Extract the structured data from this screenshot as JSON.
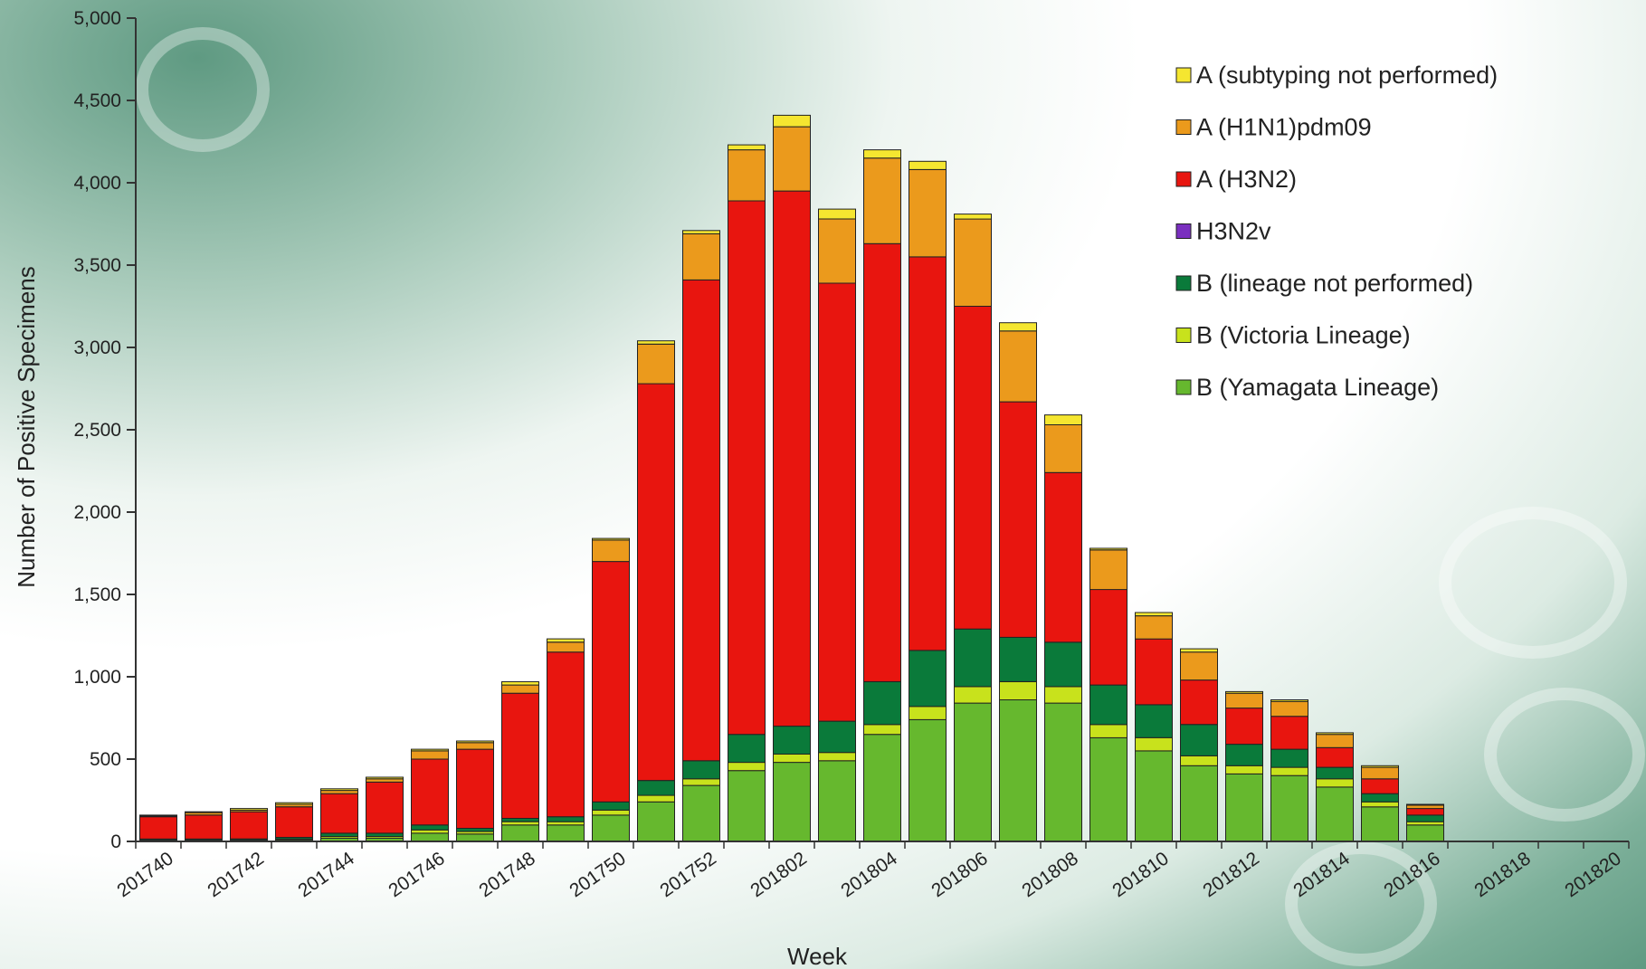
{
  "chart_data": {
    "type": "bar",
    "stacked": true,
    "xlabel": "Week",
    "ylabel": "Number of Positive Specimens",
    "ylim": [
      0,
      5000
    ],
    "yticks": [
      0,
      500,
      1000,
      1500,
      2000,
      2500,
      3000,
      3500,
      4000,
      4500,
      5000
    ],
    "ytick_labels": [
      "0",
      "500",
      "1,000",
      "1,500",
      "2,000",
      "2,500",
      "3,000",
      "3,500",
      "4,000",
      "4,500",
      "5,000"
    ],
    "xtick_labels": [
      "201740",
      "201742",
      "201744",
      "201746",
      "201748",
      "201750",
      "201752",
      "201802",
      "201804",
      "201806",
      "201808",
      "201810",
      "201812",
      "201814",
      "201816",
      "201818",
      "201820"
    ],
    "categories": [
      "201740",
      "201741",
      "201742",
      "201743",
      "201744",
      "201745",
      "201746",
      "201747",
      "201748",
      "201749",
      "201750",
      "201751",
      "201752",
      "201801",
      "201802",
      "201803",
      "201804",
      "201805",
      "201806",
      "201807",
      "201808",
      "201809",
      "201810",
      "201811",
      "201812",
      "201813",
      "201814",
      "201815",
      "201816",
      "201817",
      "201818",
      "201819",
      "201820"
    ],
    "legend_position": "top-right",
    "series": [
      {
        "name": "B (Yamagata Lineage)",
        "color": "#66b82e",
        "values": [
          5,
          5,
          5,
          10,
          20,
          20,
          50,
          45,
          100,
          100,
          160,
          240,
          340,
          430,
          480,
          490,
          650,
          740,
          840,
          860,
          840,
          630,
          550,
          460,
          410,
          400,
          330,
          210,
          100,
          0,
          0,
          0,
          0
        ]
      },
      {
        "name": "B (Victoria Lineage)",
        "color": "#c8e21c",
        "values": [
          3,
          3,
          3,
          5,
          10,
          10,
          20,
          15,
          20,
          20,
          30,
          40,
          40,
          50,
          50,
          50,
          60,
          80,
          100,
          110,
          100,
          80,
          80,
          60,
          50,
          50,
          50,
          30,
          20,
          0,
          0,
          0,
          0
        ]
      },
      {
        "name": "B (lineage not performed)",
        "color": "#0a7a3a",
        "values": [
          7,
          7,
          7,
          10,
          20,
          20,
          30,
          20,
          20,
          30,
          50,
          90,
          110,
          170,
          170,
          190,
          260,
          340,
          350,
          270,
          270,
          240,
          200,
          190,
          130,
          110,
          70,
          50,
          40,
          0,
          0,
          0,
          0
        ]
      },
      {
        "name": "H3N2v",
        "color": "#7a2fbf",
        "values": [
          0,
          0,
          0,
          0,
          0,
          0,
          0,
          0,
          0,
          0,
          0,
          0,
          0,
          0,
          0,
          0,
          0,
          0,
          0,
          0,
          0,
          0,
          0,
          0,
          0,
          0,
          0,
          0,
          0,
          0,
          0,
          0,
          0
        ]
      },
      {
        "name": "A (H3N2)",
        "color": "#e8150f",
        "values": [
          135,
          145,
          165,
          185,
          240,
          310,
          400,
          480,
          760,
          1000,
          1460,
          2410,
          2920,
          3240,
          3250,
          2660,
          2660,
          2390,
          1960,
          1430,
          1030,
          580,
          400,
          270,
          220,
          200,
          120,
          90,
          40,
          0,
          0,
          0,
          0
        ]
      },
      {
        "name": "A (H1N1)pdm09",
        "color": "#eb9a1c",
        "values": [
          5,
          15,
          10,
          15,
          20,
          20,
          50,
          40,
          50,
          60,
          130,
          240,
          280,
          310,
          390,
          390,
          520,
          530,
          530,
          430,
          290,
          240,
          140,
          170,
          90,
          90,
          80,
          70,
          20,
          0,
          0,
          0,
          0
        ]
      },
      {
        "name": "A (subtyping not performed)",
        "color": "#f5e630",
        "values": [
          5,
          5,
          10,
          10,
          10,
          10,
          10,
          10,
          20,
          20,
          10,
          20,
          20,
          30,
          70,
          60,
          50,
          50,
          30,
          50,
          60,
          10,
          20,
          20,
          10,
          10,
          10,
          10,
          5,
          0,
          0,
          0,
          0
        ]
      }
    ],
    "legend_order": [
      "A (subtyping not performed)",
      "A (H1N1)pdm09",
      "A (H3N2)",
      "H3N2v",
      "B (lineage not performed)",
      "B (Victoria Lineage)",
      "B (Yamagata Lineage)"
    ]
  }
}
